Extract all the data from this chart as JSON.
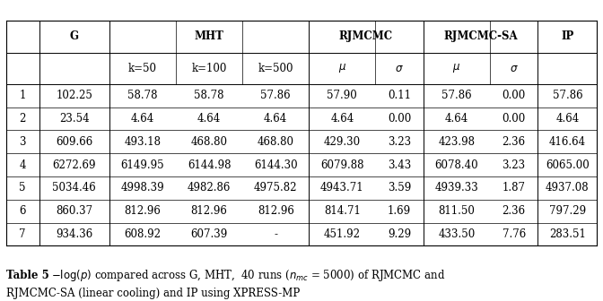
{
  "col_headers_row1": [
    "",
    "G",
    "MHT",
    "",
    "",
    "RJMCMC",
    "",
    "RJMCMC-SA",
    "",
    "IP"
  ],
  "col_headers_row2": [
    "",
    "",
    "k=50",
    "k=100",
    "k=500",
    "μ",
    "σ",
    "μ",
    "σ",
    ""
  ],
  "rows": [
    [
      "1",
      "102.25",
      "58.78",
      "58.78",
      "57.86",
      "57.90",
      "0.11",
      "57.86",
      "0.00",
      "57.86"
    ],
    [
      "2",
      "23.54",
      "4.64",
      "4.64",
      "4.64",
      "4.64",
      "0.00",
      "4.64",
      "0.00",
      "4.64"
    ],
    [
      "3",
      "609.66",
      "493.18",
      "468.80",
      "468.80",
      "429.30",
      "3.23",
      "423.98",
      "2.36",
      "416.64"
    ],
    [
      "4",
      "6272.69",
      "6149.95",
      "6144.98",
      "6144.30",
      "6079.88",
      "3.43",
      "6078.40",
      "3.23",
      "6065.00"
    ],
    [
      "5",
      "5034.46",
      "4998.39",
      "4982.86",
      "4975.82",
      "4943.71",
      "3.59",
      "4939.33",
      "1.87",
      "4937.08"
    ],
    [
      "6",
      "860.37",
      "812.96",
      "812.96",
      "812.96",
      "814.71",
      "1.69",
      "811.50",
      "2.36",
      "797.29"
    ],
    [
      "7",
      "934.36",
      "608.92",
      "607.39",
      "-",
      "451.92",
      "9.29",
      "433.50",
      "7.76",
      "283.51"
    ]
  ],
  "bg_color": "#ffffff",
  "line_color": "#000000",
  "text_color": "#000000",
  "font_size": 8.5,
  "fig_width": 6.72,
  "fig_height": 3.36
}
